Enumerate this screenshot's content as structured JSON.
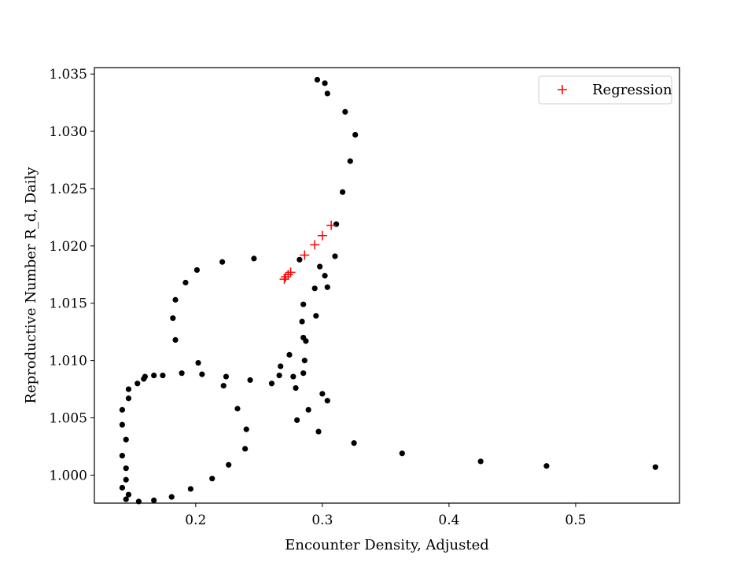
{
  "chart_data": {
    "type": "scatter",
    "title": "",
    "xlabel": "Encounter Density, Adjusted",
    "ylabel": "Reproductive Number R_d, Daily",
    "xlim": [
      0.12,
      0.582
    ],
    "ylim": [
      0.99756,
      1.03556
    ],
    "x_ticks": [
      0.2,
      0.3,
      0.4,
      0.5
    ],
    "x_tick_labels": [
      "0.2",
      "0.3",
      "0.4",
      "0.5"
    ],
    "y_ticks": [
      1.0,
      1.005,
      1.01,
      1.015,
      1.02,
      1.025,
      1.03,
      1.035
    ],
    "y_tick_labels": [
      "1.000",
      "1.005",
      "1.010",
      "1.015",
      "1.020",
      "1.025",
      "1.030",
      "1.035"
    ],
    "grid": false,
    "legend": {
      "placement": "top-right",
      "entries": [
        "Regression"
      ]
    },
    "series": [
      {
        "marker": "dot",
        "color": "#000000",
        "points": [
          [
            0.296,
            1.0345
          ],
          [
            0.302,
            1.0342
          ],
          [
            0.304,
            1.0333
          ],
          [
            0.318,
            1.0317
          ],
          [
            0.326,
            1.0297
          ],
          [
            0.322,
            1.0274
          ],
          [
            0.316,
            1.0247
          ],
          [
            0.311,
            1.0219
          ],
          [
            0.31,
            1.0191
          ],
          [
            0.298,
            1.0182
          ],
          [
            0.302,
            1.0174
          ],
          [
            0.304,
            1.0164
          ],
          [
            0.294,
            1.0163
          ],
          [
            0.285,
            1.0149
          ],
          [
            0.295,
            1.0139
          ],
          [
            0.284,
            1.0134
          ],
          [
            0.285,
            1.012
          ],
          [
            0.287,
            1.0117
          ],
          [
            0.274,
            1.0105
          ],
          [
            0.286,
            1.01
          ],
          [
            0.267,
            1.0095
          ],
          [
            0.285,
            1.0089
          ],
          [
            0.266,
            1.0087
          ],
          [
            0.277,
            1.0086
          ],
          [
            0.26,
            1.008
          ],
          [
            0.279,
            1.0076
          ],
          [
            0.3,
            1.0071
          ],
          [
            0.304,
            1.0065
          ],
          [
            0.289,
            1.0057
          ],
          [
            0.28,
            1.0048
          ],
          [
            0.297,
            1.0038
          ],
          [
            0.325,
            1.0028
          ],
          [
            0.363,
            1.0019
          ],
          [
            0.425,
            1.0012
          ],
          [
            0.477,
            1.0008
          ],
          [
            0.563,
            1.0007
          ],
          [
            0.246,
            1.0189
          ],
          [
            0.282,
            1.0188
          ],
          [
            0.221,
            1.0186
          ],
          [
            0.201,
            1.0179
          ],
          [
            0.192,
            1.0168
          ],
          [
            0.184,
            1.0153
          ],
          [
            0.182,
            1.0137
          ],
          [
            0.184,
            1.0118
          ],
          [
            0.202,
            1.0098
          ],
          [
            0.189,
            1.0089
          ],
          [
            0.205,
            1.0088
          ],
          [
            0.174,
            1.0087
          ],
          [
            0.167,
            1.0087
          ],
          [
            0.16,
            1.0086
          ],
          [
            0.224,
            1.0086
          ],
          [
            0.159,
            1.0084
          ],
          [
            0.243,
            1.0083
          ],
          [
            0.154,
            1.008
          ],
          [
            0.222,
            1.0078
          ],
          [
            0.147,
            1.0075
          ],
          [
            0.147,
            1.0067
          ],
          [
            0.233,
            1.0058
          ],
          [
            0.142,
            1.0057
          ],
          [
            0.142,
            1.0044
          ],
          [
            0.24,
            1.004
          ],
          [
            0.145,
            1.0031
          ],
          [
            0.239,
            1.0023
          ],
          [
            0.142,
            1.0017
          ],
          [
            0.226,
            1.0009
          ],
          [
            0.145,
            1.0006
          ],
          [
            0.213,
            0.9997
          ],
          [
            0.145,
            0.9996
          ],
          [
            0.142,
            0.9989
          ],
          [
            0.196,
            0.9988
          ],
          [
            0.147,
            0.9983
          ],
          [
            0.181,
            0.9981
          ],
          [
            0.145,
            0.9979
          ],
          [
            0.167,
            0.9978
          ],
          [
            0.155,
            0.9977
          ]
        ]
      },
      {
        "name": "Regression",
        "marker": "plus",
        "color": "#ff0000",
        "points": [
          [
            0.307,
            1.0218
          ],
          [
            0.3,
            1.0209
          ],
          [
            0.294,
            1.0201
          ],
          [
            0.286,
            1.0192
          ],
          [
            0.275,
            1.0177
          ],
          [
            0.273,
            1.0175
          ],
          [
            0.271,
            1.0173
          ],
          [
            0.27,
            1.0171
          ]
        ]
      }
    ]
  }
}
